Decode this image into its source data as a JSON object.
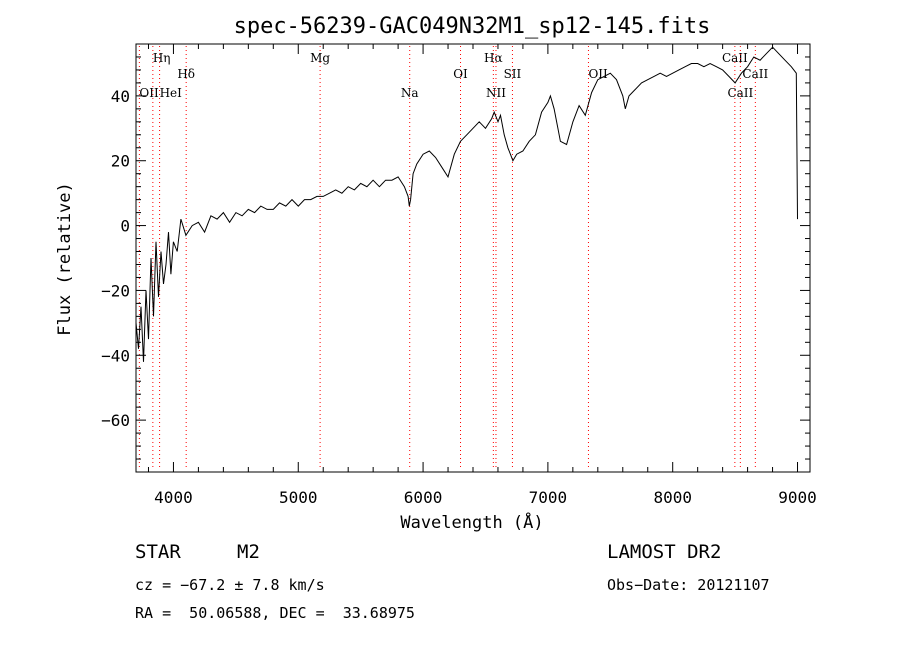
{
  "chart_data": {
    "type": "line",
    "title": "spec-56239-GAC049N32M1_sp12-145.fits",
    "xlabel": "Wavelength (Å)",
    "ylabel": "Flux (relative)",
    "xlim": [
      3700,
      9100
    ],
    "ylim": [
      -76,
      56
    ],
    "xticks": [
      4000,
      5000,
      6000,
      7000,
      8000,
      9000
    ],
    "yticks": [
      40,
      20,
      0,
      -20,
      -40,
      -60
    ],
    "grid": false,
    "series": [
      {
        "x": [
          3700,
          3720,
          3740,
          3760,
          3780,
          3800,
          3820,
          3840,
          3860,
          3880,
          3900,
          3920,
          3940,
          3960,
          3980,
          4000,
          4030,
          4060,
          4100,
          4150,
          4200,
          4250,
          4300,
          4350,
          4400,
          4450,
          4500,
          4550,
          4600,
          4650,
          4700,
          4750,
          4800,
          4850,
          4900,
          4950,
          5000,
          5050,
          5100,
          5150,
          5200,
          5250,
          5300,
          5350,
          5400,
          5450,
          5500,
          5550,
          5600,
          5650,
          5700,
          5750,
          5800,
          5850,
          5880,
          5890,
          5900,
          5920,
          5950,
          6000,
          6050,
          6100,
          6150,
          6200,
          6250,
          6300,
          6350,
          6400,
          6450,
          6500,
          6550,
          6570,
          6600,
          6620,
          6650,
          6680,
          6700,
          6720,
          6750,
          6800,
          6850,
          6900,
          6950,
          7000,
          7020,
          7050,
          7080,
          7100,
          7150,
          7200,
          7250,
          7300,
          7350,
          7400,
          7450,
          7500,
          7550,
          7600,
          7620,
          7650,
          7700,
          7750,
          7800,
          7850,
          7900,
          7950,
          8000,
          8050,
          8100,
          8150,
          8200,
          8250,
          8300,
          8350,
          8400,
          8450,
          8500,
          8550,
          8600,
          8650,
          8700,
          8750,
          8800,
          8850,
          8900,
          8950,
          8990,
          9000
        ],
        "y": [
          -30,
          -38,
          -25,
          -42,
          -20,
          -35,
          -10,
          -28,
          -5,
          -22,
          -8,
          -18,
          -12,
          -2,
          -15,
          -5,
          -8,
          2,
          -3,
          0,
          1,
          -2,
          3,
          2,
          4,
          1,
          4,
          3,
          5,
          4,
          6,
          5,
          5,
          7,
          6,
          8,
          6,
          8,
          8,
          9,
          9,
          10,
          11,
          10,
          12,
          11,
          13,
          12,
          14,
          12,
          14,
          14,
          15,
          12,
          9,
          6,
          8,
          16,
          19,
          22,
          23,
          21,
          18,
          15,
          22,
          26,
          28,
          30,
          32,
          30,
          33,
          35,
          32,
          34,
          28,
          24,
          22,
          20,
          22,
          23,
          26,
          28,
          35,
          38,
          40,
          36,
          30,
          26,
          25,
          32,
          37,
          34,
          41,
          45,
          46,
          47,
          45,
          40,
          36,
          40,
          42,
          44,
          45,
          46,
          47,
          46,
          47,
          48,
          49,
          50,
          50,
          49,
          50,
          49,
          48,
          46,
          44,
          47,
          49,
          52,
          51,
          53,
          55,
          53,
          51,
          49,
          47,
          2
        ]
      }
    ],
    "lines": [
      {
        "label": "Hη",
        "x": 3835,
        "row": 1,
        "align": "start"
      },
      {
        "label": "OII",
        "x": 3727,
        "row": 3,
        "align": "start"
      },
      {
        "label": "HeI",
        "x": 3889,
        "row": 3,
        "align": "start"
      },
      {
        "label": "Hδ",
        "x": 4102,
        "row": 2,
        "align": "middle"
      },
      {
        "label": "Mg",
        "x": 5175,
        "row": 1,
        "align": "middle"
      },
      {
        "label": "Na",
        "x": 5893,
        "row": 3,
        "align": "middle"
      },
      {
        "label": "OI",
        "x": 6300,
        "row": 2,
        "align": "middle"
      },
      {
        "label": "Hα",
        "x": 6563,
        "row": 1,
        "align": "middle"
      },
      {
        "label": "NII",
        "x": 6584,
        "row": 3,
        "align": "middle"
      },
      {
        "label": "SII",
        "x": 6716,
        "row": 2,
        "align": "middle"
      },
      {
        "label": "OII",
        "x": 7325,
        "row": 2,
        "align": "start"
      },
      {
        "label": "CaII",
        "x": 8498,
        "row": 1,
        "align": "middle"
      },
      {
        "label": "CaII",
        "x": 8542,
        "row": 3,
        "align": "middle"
      },
      {
        "label": "CaII",
        "x": 8662,
        "row": 2,
        "align": "middle"
      }
    ],
    "line_color": "#ff0000"
  },
  "info": {
    "class_label": "STAR",
    "subclass": "M2",
    "survey": "LAMOST DR2",
    "cz": "cz = −67.2 ± 7.8 km/s",
    "obs_date": "Obs−Date: 20121107",
    "coords": "RA =  50.06588, DEC =  33.68975"
  }
}
